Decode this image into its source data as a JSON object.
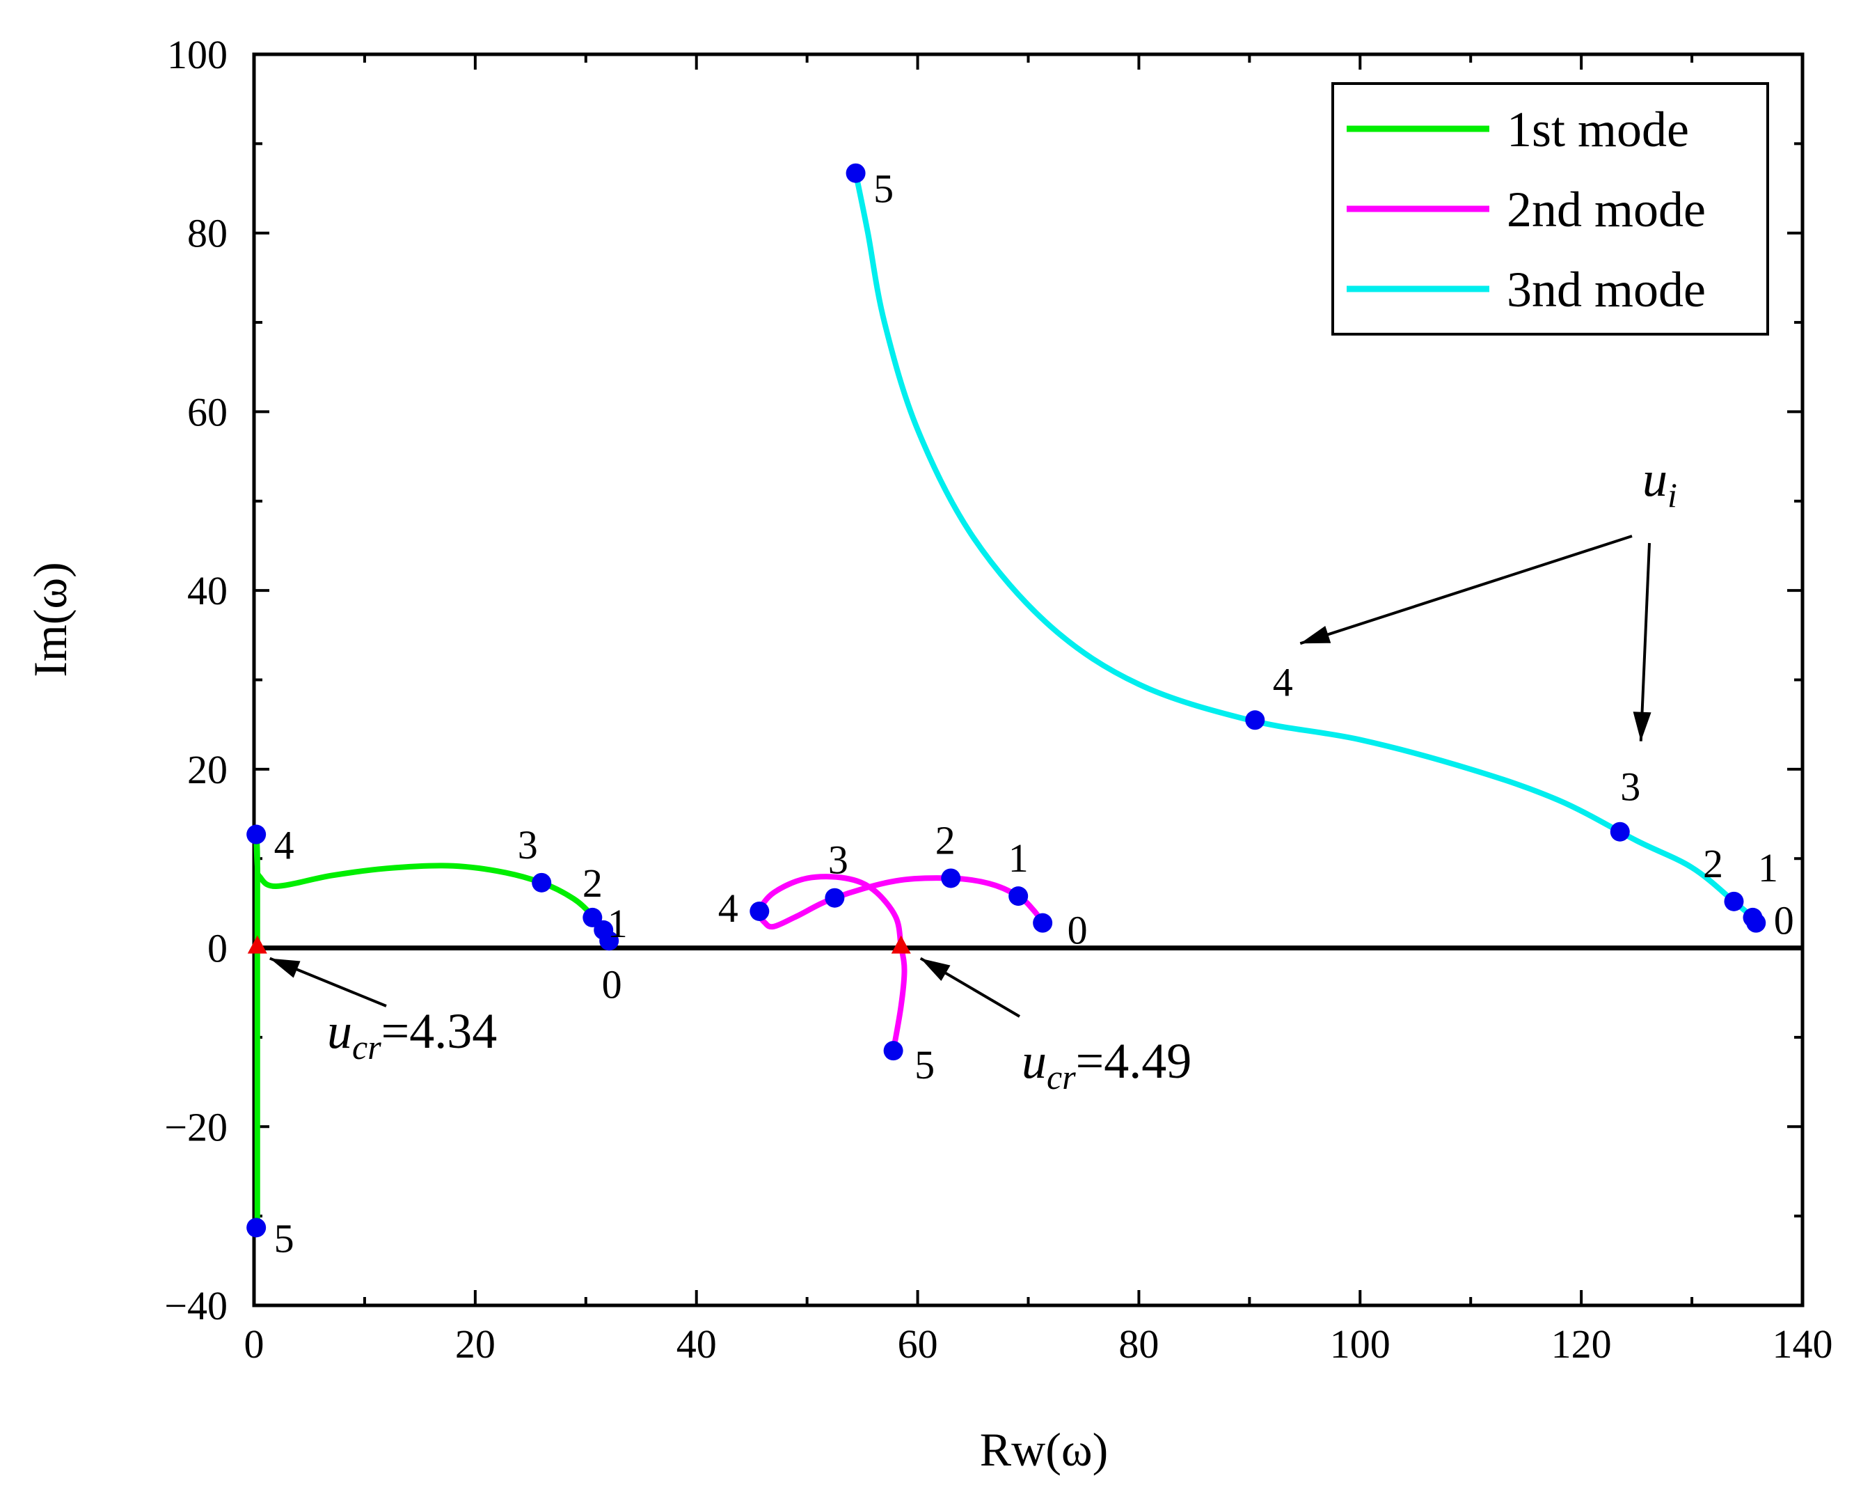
{
  "chart_data": {
    "type": "line",
    "xlabel": "Rw(ω)",
    "ylabel": "Im(ω)",
    "xlim": [
      0,
      140
    ],
    "ylim": [
      -40,
      100
    ],
    "x_ticks": [
      "0",
      "20",
      "40",
      "60",
      "80",
      "100",
      "120",
      "140"
    ],
    "y_ticks": [
      "−40",
      "−20",
      "0",
      "20",
      "40",
      "60",
      "80",
      "100"
    ],
    "legend": {
      "position": "top-right",
      "entries": [
        "1st mode",
        "2nd mode",
        "3nd mode"
      ]
    },
    "colors": {
      "mode1": "#00ee00",
      "mode2": "#ff00ff",
      "mode3": "#00eeee",
      "marker": "#0000ee",
      "critical": "#ee0000",
      "axis": "#000000"
    },
    "series": [
      {
        "name": "1st mode",
        "color": "#00ee00",
        "curve": [
          [
            32.1,
            0.8
          ],
          [
            31.6,
            2.0
          ],
          [
            30.6,
            3.6
          ],
          [
            28.9,
            5.5
          ],
          [
            26.0,
            7.3
          ],
          [
            22.0,
            8.6
          ],
          [
            17.5,
            9.2
          ],
          [
            12.0,
            8.9
          ],
          [
            7.0,
            8.1
          ],
          [
            2.0,
            6.9
          ],
          [
            0.5,
            8.0
          ],
          [
            0.3,
            9.2
          ],
          [
            0.2,
            12.7
          ],
          [
            0.3,
            10.0
          ],
          [
            0.3,
            0.4
          ],
          [
            0.3,
            -31.3
          ]
        ],
        "markers": [
          {
            "x": 32.1,
            "y": 0.8,
            "label": "0"
          },
          {
            "x": 31.6,
            "y": 2.0,
            "label": "1"
          },
          {
            "x": 30.6,
            "y": 3.4,
            "label": "2"
          },
          {
            "x": 26.0,
            "y": 7.3,
            "label": "3"
          },
          {
            "x": 0.2,
            "y": 12.7,
            "label": "4"
          },
          {
            "x": 0.2,
            "y": -31.3,
            "label": "5"
          }
        ]
      },
      {
        "name": "2nd mode",
        "color": "#ff00ff",
        "curve": [
          [
            71.3,
            2.8
          ],
          [
            70.5,
            4.2
          ],
          [
            69.1,
            5.8
          ],
          [
            66.5,
            7.2
          ],
          [
            63.0,
            7.8
          ],
          [
            58.0,
            7.5
          ],
          [
            52.5,
            5.6
          ],
          [
            49.0,
            3.5
          ],
          [
            47.0,
            2.4
          ],
          [
            46.2,
            2.8
          ],
          [
            45.7,
            4.1
          ],
          [
            47.0,
            6.2
          ],
          [
            50.0,
            7.8
          ],
          [
            53.5,
            7.8
          ],
          [
            56.0,
            6.5
          ],
          [
            58.0,
            3.5
          ],
          [
            58.5,
            0.2
          ],
          [
            58.8,
            -2.5
          ],
          [
            58.5,
            -6.5
          ],
          [
            57.8,
            -11.5
          ]
        ],
        "markers": [
          {
            "x": 71.3,
            "y": 2.8,
            "label": "0"
          },
          {
            "x": 69.1,
            "y": 5.8,
            "label": "1"
          },
          {
            "x": 63.0,
            "y": 7.8,
            "label": "2"
          },
          {
            "x": 52.5,
            "y": 5.6,
            "label": "3"
          },
          {
            "x": 45.7,
            "y": 4.1,
            "label": "4"
          },
          {
            "x": 57.8,
            "y": -11.5,
            "label": "5"
          }
        ]
      },
      {
        "name": "3nd mode",
        "color": "#00eeee",
        "curve": [
          [
            135.8,
            2.8
          ],
          [
            135.5,
            3.4
          ],
          [
            133.8,
            5.2
          ],
          [
            130.0,
            9.0
          ],
          [
            125.0,
            12.0
          ],
          [
            118.0,
            16.5
          ],
          [
            110.0,
            20.0
          ],
          [
            100.0,
            23.3
          ],
          [
            90.0,
            25.5
          ],
          [
            80.0,
            29.5
          ],
          [
            72.0,
            36.0
          ],
          [
            65.0,
            46.0
          ],
          [
            60.0,
            58.0
          ],
          [
            57.0,
            70.0
          ],
          [
            55.5,
            80.0
          ],
          [
            54.4,
            86.7
          ]
        ],
        "markers": [
          {
            "x": 135.8,
            "y": 2.8,
            "label": "0"
          },
          {
            "x": 135.5,
            "y": 3.4,
            "label": "1"
          },
          {
            "x": 133.8,
            "y": 5.2,
            "label": "2"
          },
          {
            "x": 123.5,
            "y": 13.0,
            "label": "3"
          },
          {
            "x": 90.5,
            "y": 25.5,
            "label": "4"
          },
          {
            "x": 54.4,
            "y": 86.7,
            "label": "5"
          }
        ]
      }
    ],
    "critical_points": [
      {
        "x": 0.3,
        "y": 0,
        "label_var": "u",
        "label_sub": "cr",
        "label_val": "=4.34"
      },
      {
        "x": 58.5,
        "y": 0,
        "label_var": "u",
        "label_sub": "cr",
        "label_val": "=4.49"
      }
    ],
    "annotation_ui": {
      "var": "u",
      "sub": "i"
    }
  }
}
